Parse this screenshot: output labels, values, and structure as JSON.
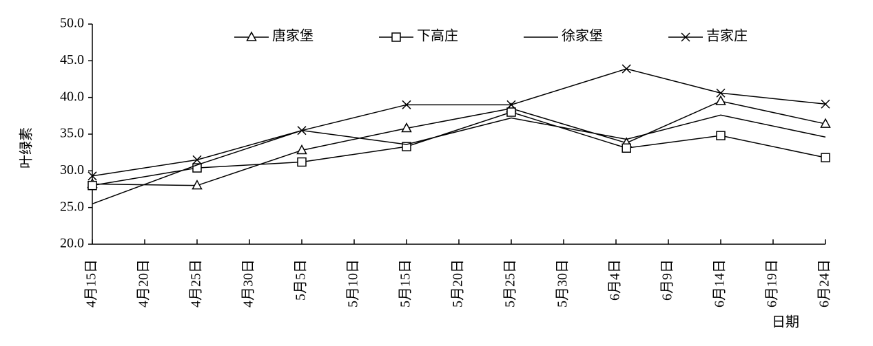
{
  "chart_data": {
    "type": "line",
    "y_label": "叶绿素",
    "x_label": "日期",
    "x": [
      0,
      10,
      20,
      30,
      40,
      51,
      60,
      70
    ],
    "xlim": [
      0,
      70
    ],
    "xticks": [
      {
        "value": 0,
        "label": "4月15日"
      },
      {
        "value": 5,
        "label": "4月20日"
      },
      {
        "value": 10,
        "label": "4月25日"
      },
      {
        "value": 15,
        "label": "4月30日"
      },
      {
        "value": 20,
        "label": "5月5日"
      },
      {
        "value": 25,
        "label": "5月10日"
      },
      {
        "value": 30,
        "label": "5月15日"
      },
      {
        "value": 35,
        "label": "5月20日"
      },
      {
        "value": 40,
        "label": "5月25日"
      },
      {
        "value": 45,
        "label": "5月30日"
      },
      {
        "value": 50,
        "label": "6月4日"
      },
      {
        "value": 55,
        "label": "6月9日"
      },
      {
        "value": 60,
        "label": "6月14日"
      },
      {
        "value": 65,
        "label": "6月19日"
      },
      {
        "value": 70,
        "label": "6月24日"
      }
    ],
    "ylim": [
      20,
      50
    ],
    "yticks": [
      {
        "value": 20,
        "label": "20.0"
      },
      {
        "value": 25,
        "label": "25.0"
      },
      {
        "value": 30,
        "label": "30.0"
      },
      {
        "value": 35,
        "label": "35.0"
      },
      {
        "value": 40,
        "label": "40.0"
      },
      {
        "value": 45,
        "label": "45.0"
      },
      {
        "value": 50,
        "label": "50.0"
      }
    ],
    "legend": "top",
    "series": [
      {
        "name": "唐家堡",
        "color": "#000000",
        "marker": "triangle",
        "values": [
          28.2,
          28.0,
          32.8,
          35.8,
          38.5,
          33.8,
          39.5,
          36.4
        ]
      },
      {
        "name": "下高庄",
        "color": "#000000",
        "marker": "square",
        "values": [
          28.0,
          30.4,
          31.2,
          33.3,
          38.0,
          33.1,
          34.8,
          31.8
        ]
      },
      {
        "name": "徐家堡",
        "color": "#000000",
        "marker": "none",
        "values": [
          25.5,
          30.8,
          35.5,
          33.6,
          37.2,
          34.3,
          37.6,
          34.6
        ]
      },
      {
        "name": "吉家庄",
        "color": "#000000",
        "marker": "x",
        "values": [
          29.3,
          31.5,
          35.5,
          39.0,
          39.0,
          43.9,
          40.6,
          39.1
        ]
      }
    ]
  }
}
